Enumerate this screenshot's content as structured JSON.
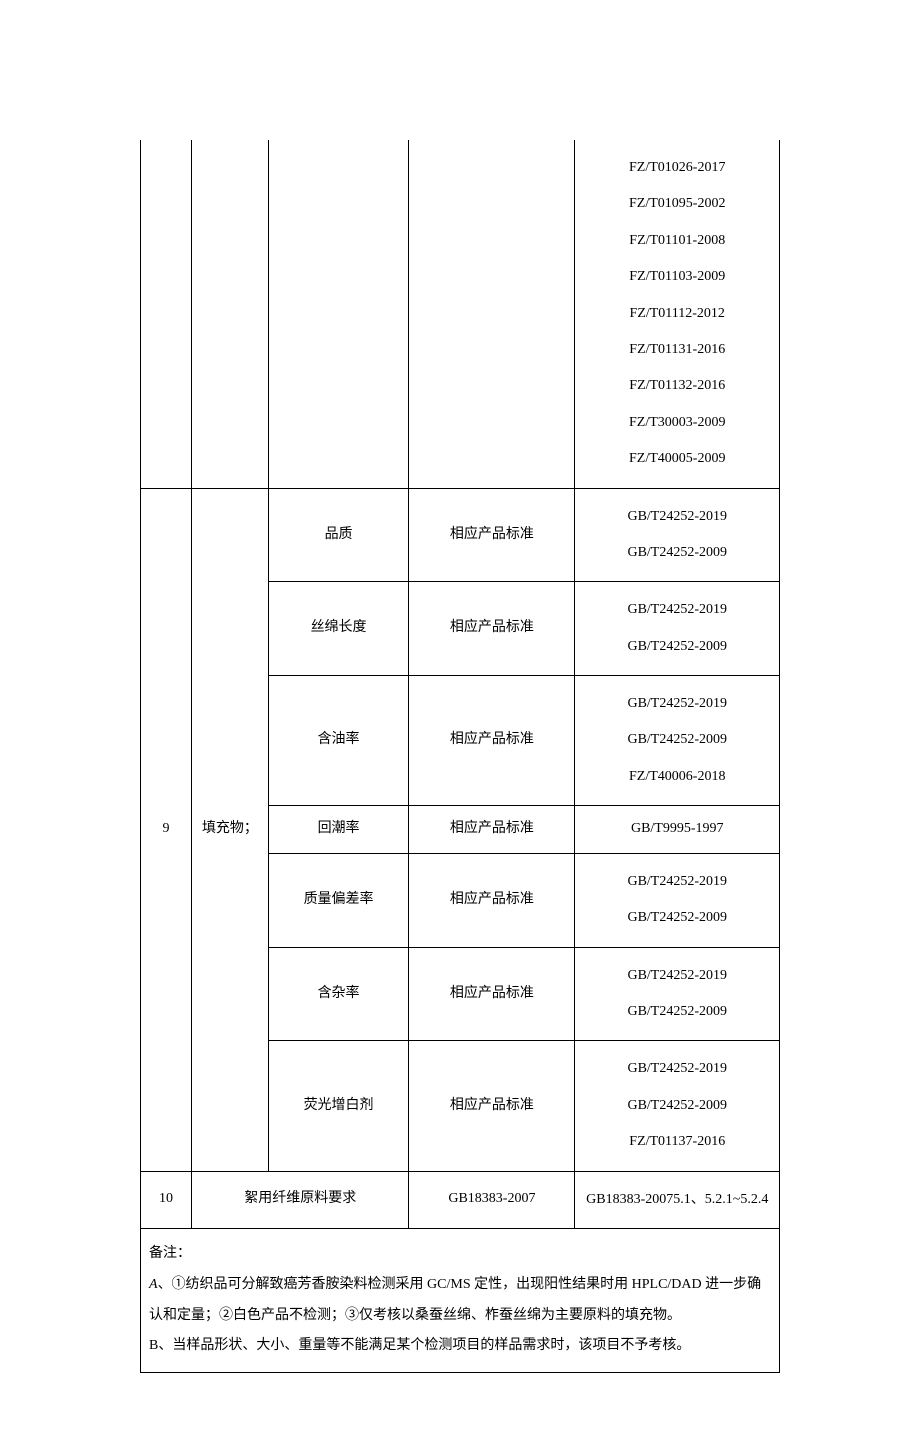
{
  "columns": {
    "widths": [
      "8%",
      "12%",
      "22%",
      "26%",
      "32%"
    ]
  },
  "rows": {
    "prev_stds": [
      "FZ/T01026-2017",
      "FZ/T01095-2002",
      "FZ/T01101-2008",
      "FZ/T01103-2009",
      "FZ/T01112-2012",
      "FZ/T01131-2016",
      "FZ/T01132-2016",
      "FZ/T30003-2009",
      "FZ/T40005-2009"
    ],
    "row9": {
      "num": "9",
      "category": "填充物；",
      "items": [
        {
          "name": "品质",
          "req": "相应产品标准",
          "stds": [
            "GB/T24252-2019",
            "GB/T24252-2009"
          ]
        },
        {
          "name": "丝绵长度",
          "req": "相应产品标准",
          "stds": [
            "GB/T24252-2019",
            "GB/T24252-2009"
          ]
        },
        {
          "name": "含油率",
          "req": "相应产品标准",
          "stds": [
            "GB/T24252-2019",
            "GB/T24252-2009",
            "FZ/T40006-2018"
          ]
        },
        {
          "name": "回潮率",
          "req": "相应产品标准",
          "stds": [
            "GB/T9995-1997"
          ]
        },
        {
          "name": "质量偏差率",
          "req": "相应产品标准",
          "stds": [
            "GB/T24252-2019",
            "GB/T24252-2009"
          ]
        },
        {
          "name": "含杂率",
          "req": "相应产品标准",
          "stds": [
            "GB/T24252-2019",
            "GB/T24252-2009"
          ]
        },
        {
          "name": "荧光增白剂",
          "req": "相应产品标准",
          "stds": [
            "GB/T24252-2019",
            "GB/T24252-2009",
            "FZ/T01137-2016"
          ]
        }
      ]
    },
    "row10": {
      "num": "10",
      "item": "絮用纤维原料要求",
      "req": "GB18383-2007",
      "std": "GB18383-20075.1、5.2.1~5.2.4"
    }
  },
  "notes": {
    "header": "备注：",
    "a_label": "A",
    "a_text": "、①纺织品可分解致癌芳香胺染料检测采用 GC/MS 定性，出现阳性结果时用 HPLC/DAD 进一步确认和定量；②白色产品不检测；③仅考核以桑蚕丝绵、柞蚕丝绵为主要原料的填充物。",
    "b_text": "B、当样品形状、大小、重量等不能满足某个检测项目的样品需求时，该项目不予考核。"
  }
}
